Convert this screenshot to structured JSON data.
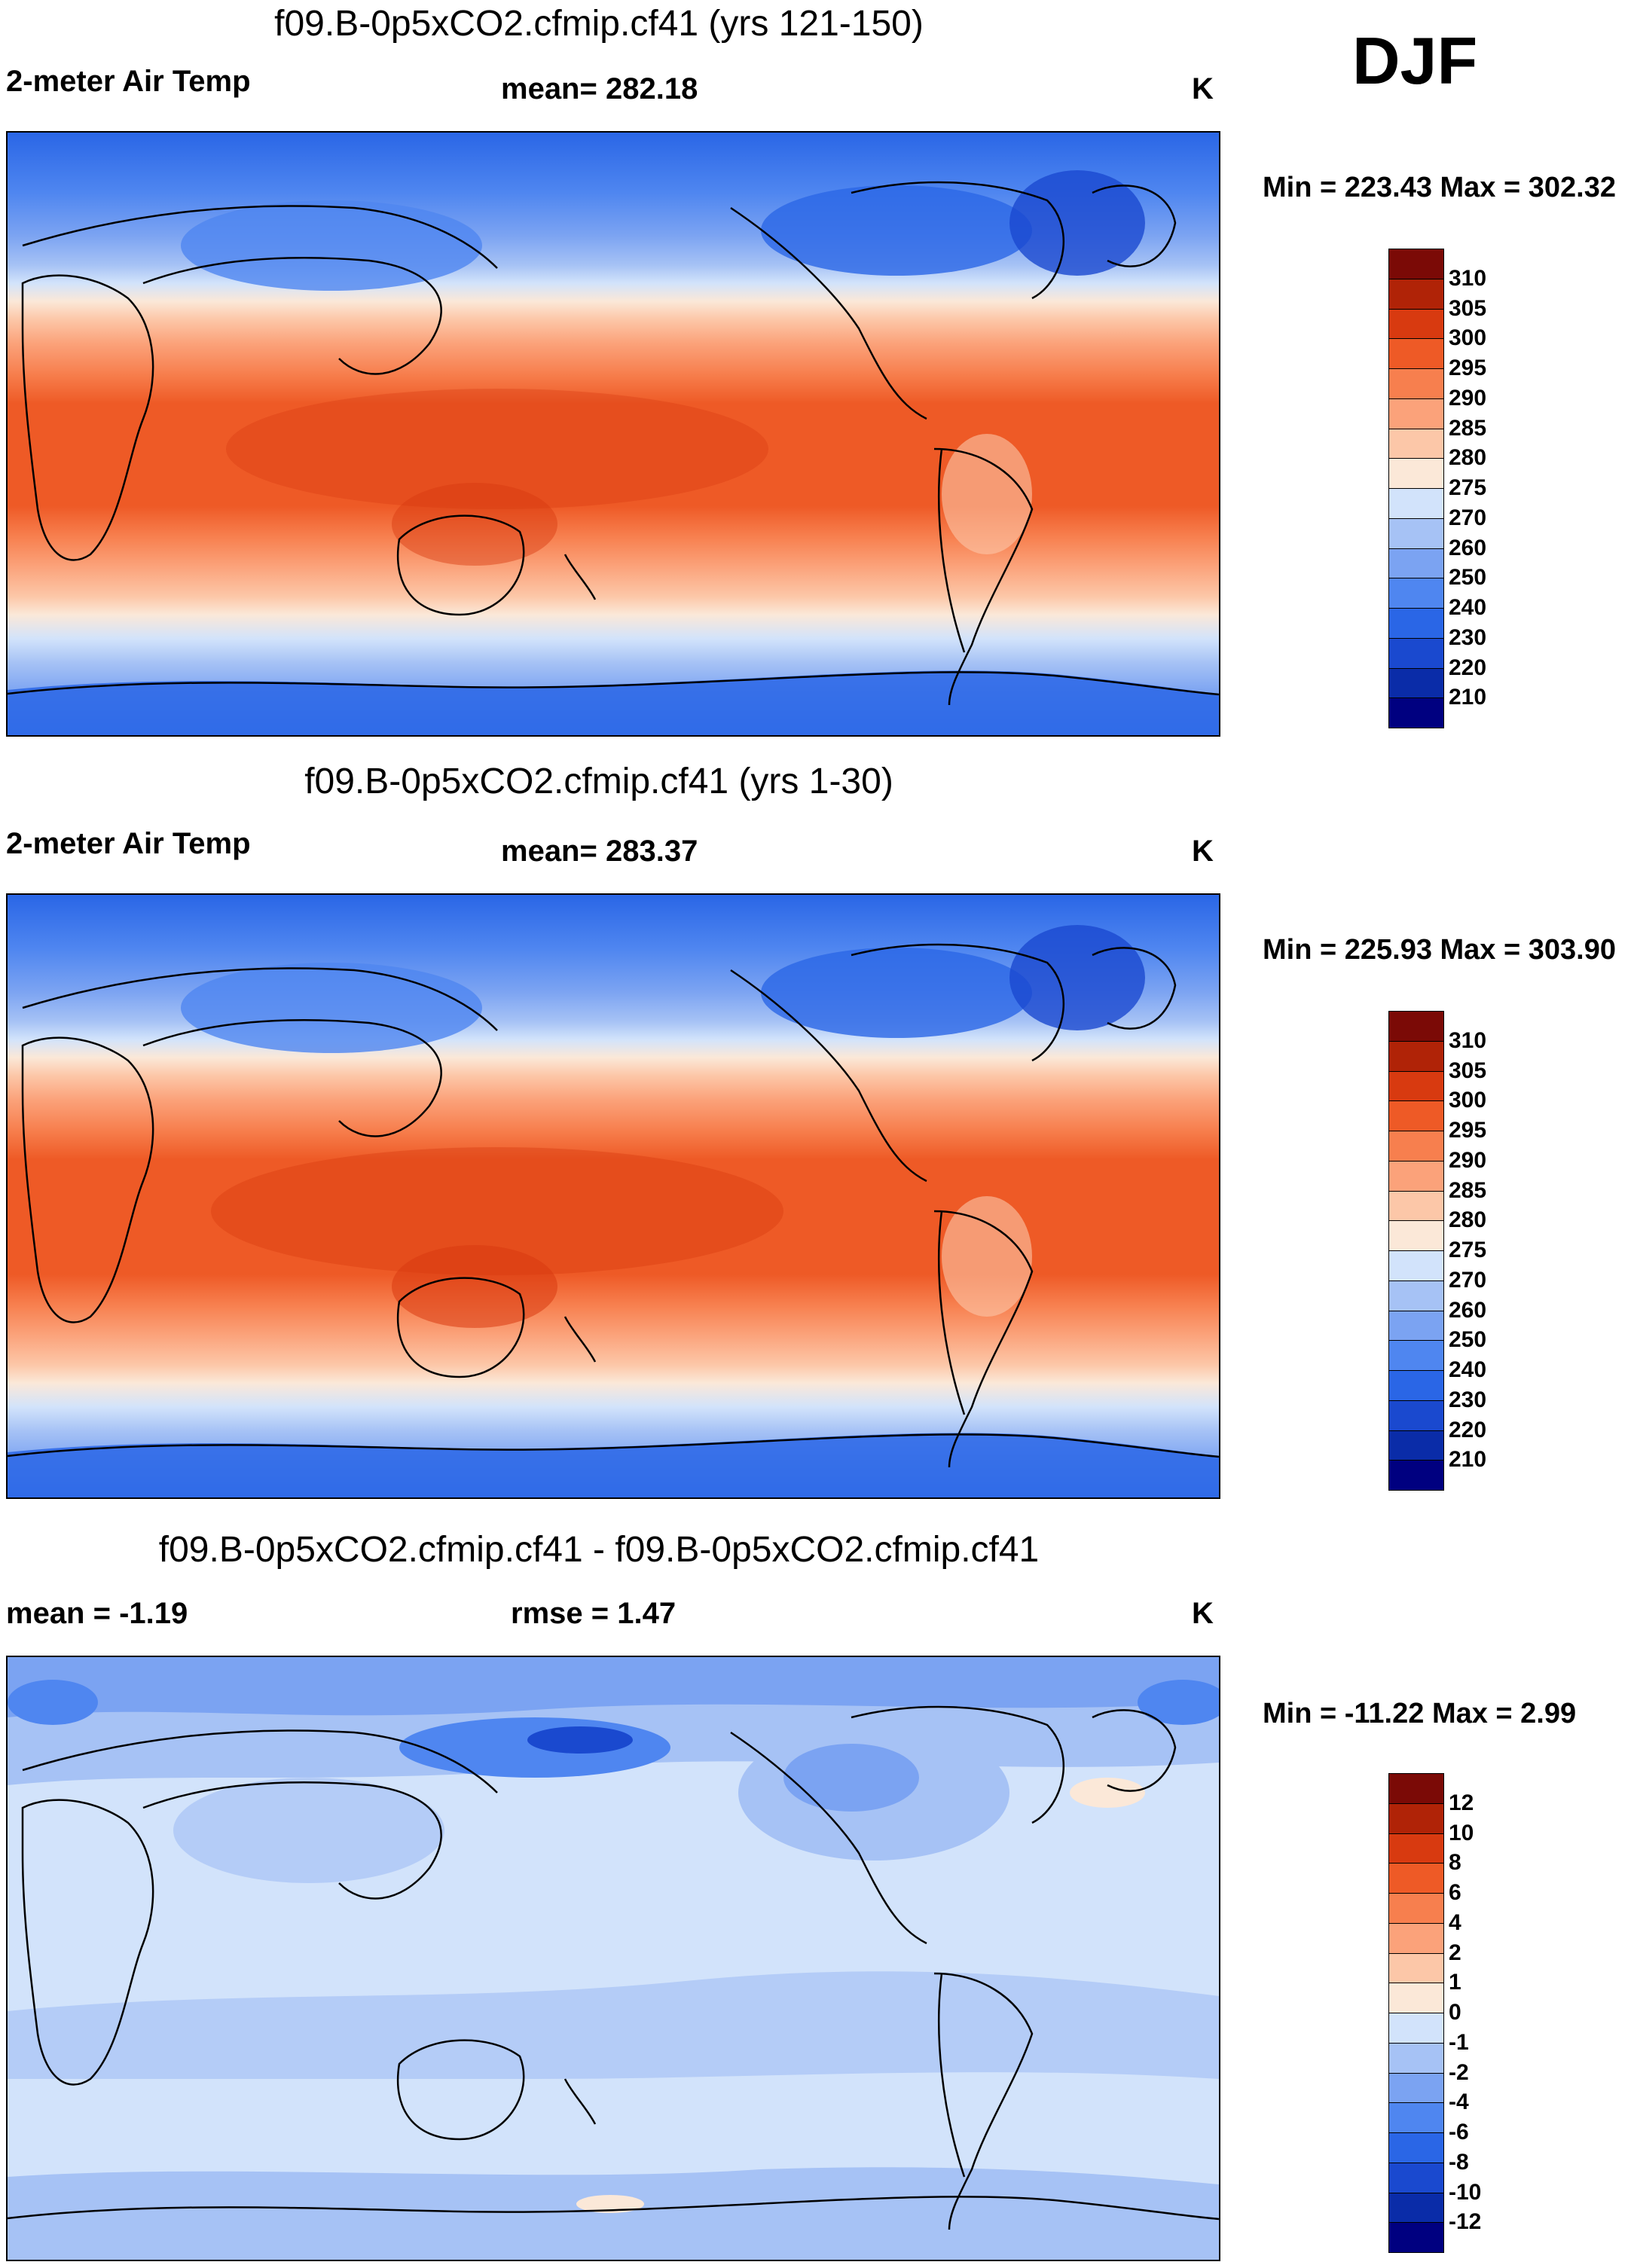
{
  "season": "DJF",
  "colors": {
    "temp_scale": [
      "#000080",
      "#0a2ca8",
      "#1a49cf",
      "#2a66e6",
      "#4f86f0",
      "#7ba3f2",
      "#a6c2f5",
      "#d2e3fb",
      "#fbe8d8",
      "#fcc7a8",
      "#fba27a",
      "#f77f4e",
      "#ee5a26",
      "#d83a10",
      "#b02307",
      "#7b0a06"
    ],
    "diff_scale": [
      "#000080",
      "#0a2ca8",
      "#1a49cf",
      "#2a66e6",
      "#4f86f0",
      "#7ba3f2",
      "#a6c2f5",
      "#d2e3fb",
      "#fbe8d8",
      "#fcc7a8",
      "#fba27a",
      "#f77f4e",
      "#ee5a26",
      "#d83a10",
      "#b02307",
      "#7b0a06"
    ]
  },
  "panels": [
    {
      "title": "f09.B-0p5xCO2.cfmip.cf41 (yrs 121-150)",
      "left_label": "2-meter Air Temp",
      "center_label": "mean= 282.18",
      "units": "K",
      "min_max": "Min = 223.43 Max = 302.32",
      "chart_data": {
        "type": "heatmap",
        "variable": "2-meter Air Temp",
        "units": "K",
        "mean": 282.18,
        "min": 223.43,
        "max": 302.32,
        "levels": [
          310,
          305,
          300,
          295,
          290,
          285,
          280,
          275,
          270,
          260,
          250,
          240,
          230,
          220,
          210
        ]
      }
    },
    {
      "title": "f09.B-0p5xCO2.cfmip.cf41 (yrs 1-30)",
      "left_label": "2-meter Air Temp",
      "center_label": "mean= 283.37",
      "units": "K",
      "min_max": "Min = 225.93 Max = 303.90",
      "chart_data": {
        "type": "heatmap",
        "variable": "2-meter Air Temp",
        "units": "K",
        "mean": 283.37,
        "min": 225.93,
        "max": 303.9,
        "levels": [
          310,
          305,
          300,
          295,
          290,
          285,
          280,
          275,
          270,
          260,
          250,
          240,
          230,
          220,
          210
        ]
      }
    },
    {
      "title": "f09.B-0p5xCO2.cfmip.cf41 - f09.B-0p5xCO2.cfmip.cf41",
      "left_label": "mean =  -1.19",
      "center_label": "rmse =   1.47",
      "units": "K",
      "min_max": "Min = -11.22 Max =   2.99",
      "chart_data": {
        "type": "heatmap",
        "variable": "2-meter Air Temp difference",
        "units": "K",
        "mean": -1.19,
        "rmse": 1.47,
        "min": -11.22,
        "max": 2.99,
        "levels": [
          12,
          10,
          8,
          6,
          4,
          2,
          1,
          0,
          -1,
          -2,
          -4,
          -6,
          -8,
          -10,
          -12
        ]
      }
    }
  ],
  "colorbar_tick_labels": {
    "temp": [
      "310",
      "305",
      "300",
      "295",
      "290",
      "285",
      "280",
      "275",
      "270",
      "260",
      "250",
      "240",
      "230",
      "220",
      "210"
    ],
    "diff": [
      "12",
      "10",
      "8",
      "6",
      "4",
      "2",
      "1",
      "0",
      "-1",
      "-2",
      "-4",
      "-6",
      "-8",
      "-10",
      "-12"
    ]
  }
}
